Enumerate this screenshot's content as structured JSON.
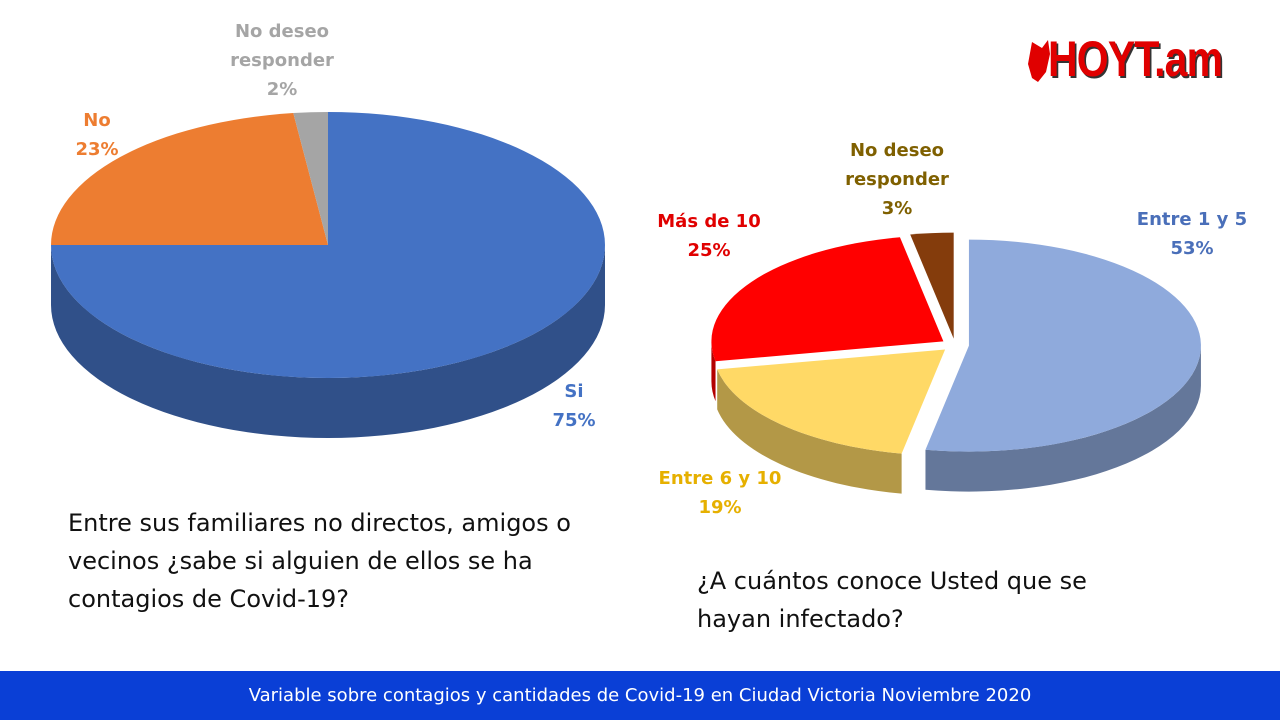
{
  "logo": "HOYT.am",
  "footer": "Variable sobre contagios y cantidades de Covid-19 en Ciudad Victoria Noviembre 2020",
  "chart_data": [
    {
      "type": "pie",
      "title": "Entre sus familiares no directos, amigos o vecinos ¿sabe si alguien de ellos se ha contagios de Covid-19?",
      "categories": [
        "Si",
        "No",
        "No deseo responder"
      ],
      "values": [
        75,
        23,
        2
      ],
      "value_labels": [
        "75%",
        "23%",
        "2%"
      ],
      "colors": [
        "#4472c4",
        "#ed7d31",
        "#a5a5a5"
      ],
      "label_colors": [
        "#4472c4",
        "#ed7d31",
        "#a5a5a5"
      ]
    },
    {
      "type": "pie",
      "title": "¿A cuántos conoce Usted que se hayan infectado?",
      "categories": [
        "Entre 1 y 5",
        "Entre 6 y 10",
        "Más de 10",
        "No deseo responder"
      ],
      "values": [
        53,
        19,
        25,
        3
      ],
      "value_labels": [
        "53%",
        "19%",
        "25%",
        "3%"
      ],
      "colors": [
        "#8faadc",
        "#ffd966",
        "#ff0000",
        "#843c0c"
      ],
      "label_colors": [
        "#4a6fb9",
        "#e6b000",
        "#e00000",
        "#7f6000"
      ]
    }
  ]
}
